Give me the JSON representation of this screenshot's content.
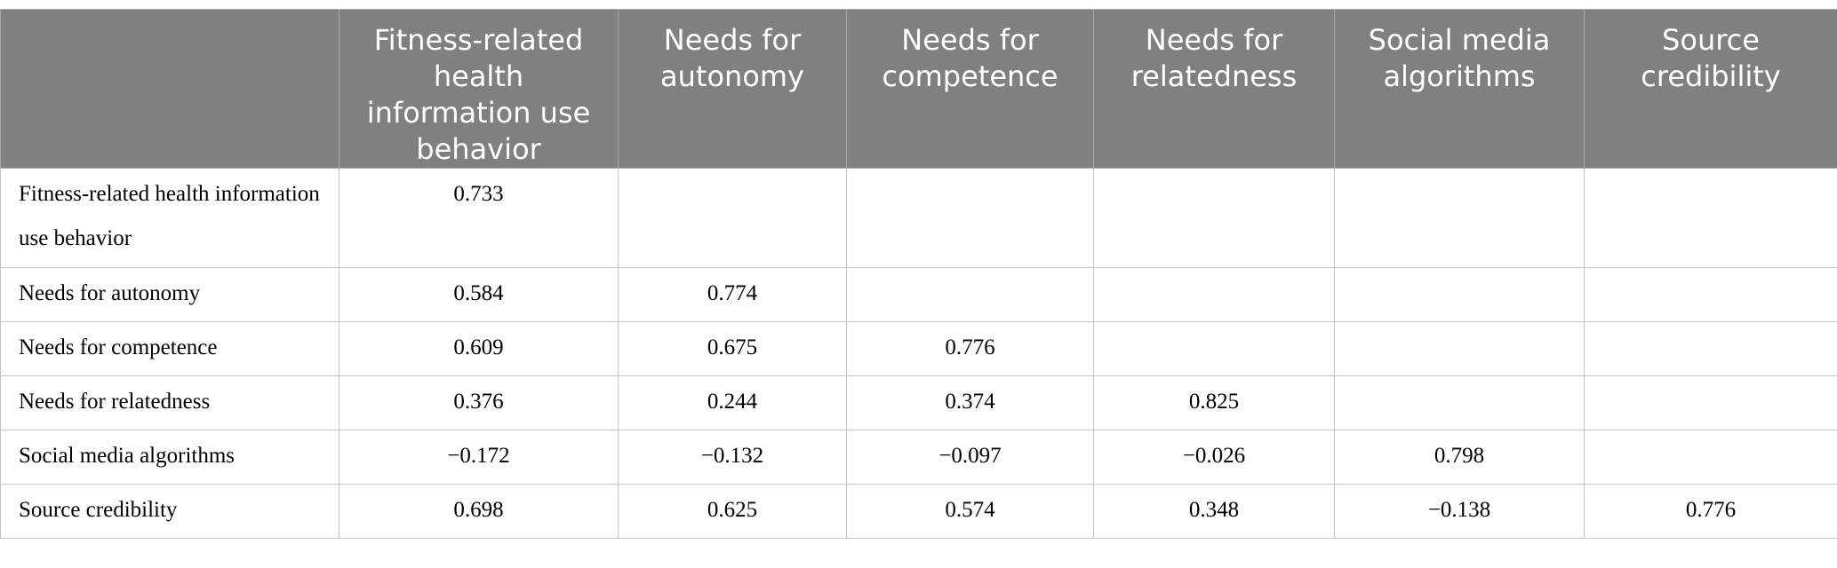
{
  "table": {
    "header": [
      null,
      "Fitness-related health information use behavior",
      "Needs for autonomy",
      "Needs for competence",
      "Needs for relatedness",
      "Social media algorithms",
      "Source credibility"
    ],
    "rows": [
      [
        "Fitness-related health information use behavior",
        "0.733",
        null,
        null,
        null,
        null,
        null
      ],
      [
        "Needs for autonomy",
        "0.584",
        "0.774",
        null,
        null,
        null,
        null
      ],
      [
        "Needs for competence",
        "0.609",
        "0.675",
        "0.776",
        null,
        null,
        null
      ],
      [
        "Needs for relatedness",
        "0.376",
        "0.244",
        "0.374",
        "0.825",
        null,
        null
      ],
      [
        "Social media algorithms",
        "−0.172",
        "−0.132",
        "−0.097",
        "−0.026",
        "0.798",
        null
      ],
      [
        "Source credibility",
        "0.698",
        "0.625",
        "0.574",
        "0.348",
        "−0.138",
        "0.776"
      ]
    ]
  }
}
